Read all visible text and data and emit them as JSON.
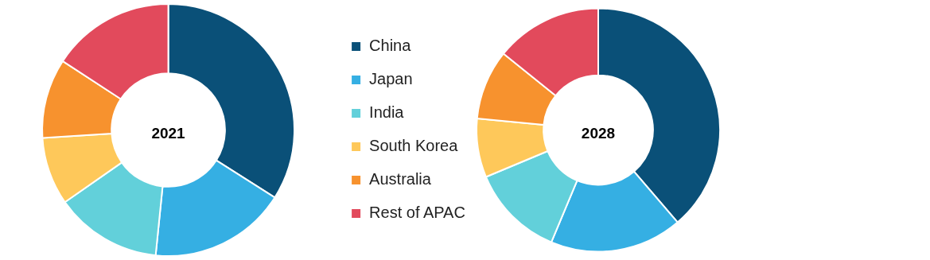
{
  "chart_data": [
    {
      "type": "donut",
      "title": "2021",
      "categories": [
        "China",
        "Japan",
        "India",
        "South Korea",
        "Australia",
        "Rest of APAC"
      ],
      "values": [
        34,
        17.6,
        13.7,
        8.7,
        10.2,
        15.8
      ],
      "colors": [
        "#0a5078",
        "#35afe3",
        "#62d0da",
        "#fec85a",
        "#f7922e",
        "#e24a5c"
      ],
      "legend": "right"
    },
    {
      "type": "donut",
      "title": "2028",
      "categories": [
        null,
        null,
        null,
        null,
        null,
        null
      ],
      "values": [
        38.7,
        17.6,
        12.4,
        7.8,
        9.3,
        14.2
      ],
      "colors": [
        "#0a5078",
        "#35afe3",
        "#62d0da",
        "#fec85a",
        "#f7922e",
        "#e24a5c"
      ]
    }
  ]
}
